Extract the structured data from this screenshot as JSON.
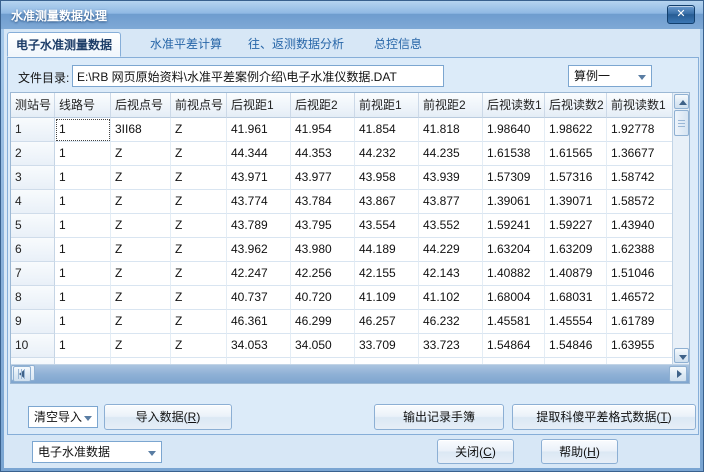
{
  "window": {
    "title": "水准测量数据处理",
    "close_glyph": "✕"
  },
  "tabs": [
    {
      "label": "电子水准测量数据",
      "active": true
    },
    {
      "label": "水准平差计算",
      "active": false
    },
    {
      "label": "往、返测数据分析",
      "active": false
    },
    {
      "label": "总控信息",
      "active": false
    }
  ],
  "file_section": {
    "label": "文件目录:",
    "path": "E:\\RB 网页原始资料\\水准平差案例介绍\\电子水准仪数据.DAT",
    "example_combo_value": "算例一"
  },
  "table": {
    "columns": [
      "测站号",
      "线路号",
      "后视点号",
      "前视点号",
      "后视距1",
      "后视距2",
      "前视距1",
      "前视距2",
      "后视读数1",
      "后视读数2",
      "前视读数1"
    ],
    "rows": [
      [
        "1",
        "1",
        "3II68",
        "Z",
        "41.961",
        "41.954",
        "41.854",
        "41.818",
        "1.98640",
        "1.98622",
        "1.92778"
      ],
      [
        "2",
        "1",
        "Z",
        "Z",
        "44.344",
        "44.353",
        "44.232",
        "44.235",
        "1.61538",
        "1.61565",
        "1.36677"
      ],
      [
        "3",
        "1",
        "Z",
        "Z",
        "43.971",
        "43.977",
        "43.958",
        "43.939",
        "1.57309",
        "1.57316",
        "1.58742"
      ],
      [
        "4",
        "1",
        "Z",
        "Z",
        "43.774",
        "43.784",
        "43.867",
        "43.877",
        "1.39061",
        "1.39071",
        "1.58572"
      ],
      [
        "5",
        "1",
        "Z",
        "Z",
        "43.789",
        "43.795",
        "43.554",
        "43.552",
        "1.59241",
        "1.59227",
        "1.43940"
      ],
      [
        "6",
        "1",
        "Z",
        "Z",
        "43.962",
        "43.980",
        "44.189",
        "44.229",
        "1.63204",
        "1.63209",
        "1.62388"
      ],
      [
        "7",
        "1",
        "Z",
        "Z",
        "42.247",
        "42.256",
        "42.155",
        "42.143",
        "1.40882",
        "1.40879",
        "1.51046"
      ],
      [
        "8",
        "1",
        "Z",
        "Z",
        "40.737",
        "40.720",
        "41.109",
        "41.102",
        "1.68004",
        "1.68031",
        "1.46572"
      ],
      [
        "9",
        "1",
        "Z",
        "Z",
        "46.361",
        "46.299",
        "46.257",
        "46.232",
        "1.45581",
        "1.45554",
        "1.61789"
      ],
      [
        "10",
        "1",
        "Z",
        "Z",
        "34.053",
        "34.050",
        "33.709",
        "33.723",
        "1.54864",
        "1.54846",
        "1.63955"
      ]
    ],
    "partial_row": [
      "",
      "",
      "",
      "",
      "",
      "",
      "",
      "",
      "",
      "",
      ""
    ]
  },
  "toolbar": {
    "clear_import_combo_value": "清空导入",
    "import_button": "导入数据(R)",
    "output_button": "输出记录手簿",
    "extract_button": "提取科傻平差格式数据(T)"
  },
  "footer": {
    "data_type_combo_value": "电子水准数据",
    "close_button": "关闭(C)",
    "help_button": "帮助(H)"
  },
  "colors": {
    "titlebar_blue": "#8fb8e3",
    "panel_blue": "#dcebf9",
    "border_blue": "#86aed8",
    "tab_text_blue": "#2766a8"
  }
}
